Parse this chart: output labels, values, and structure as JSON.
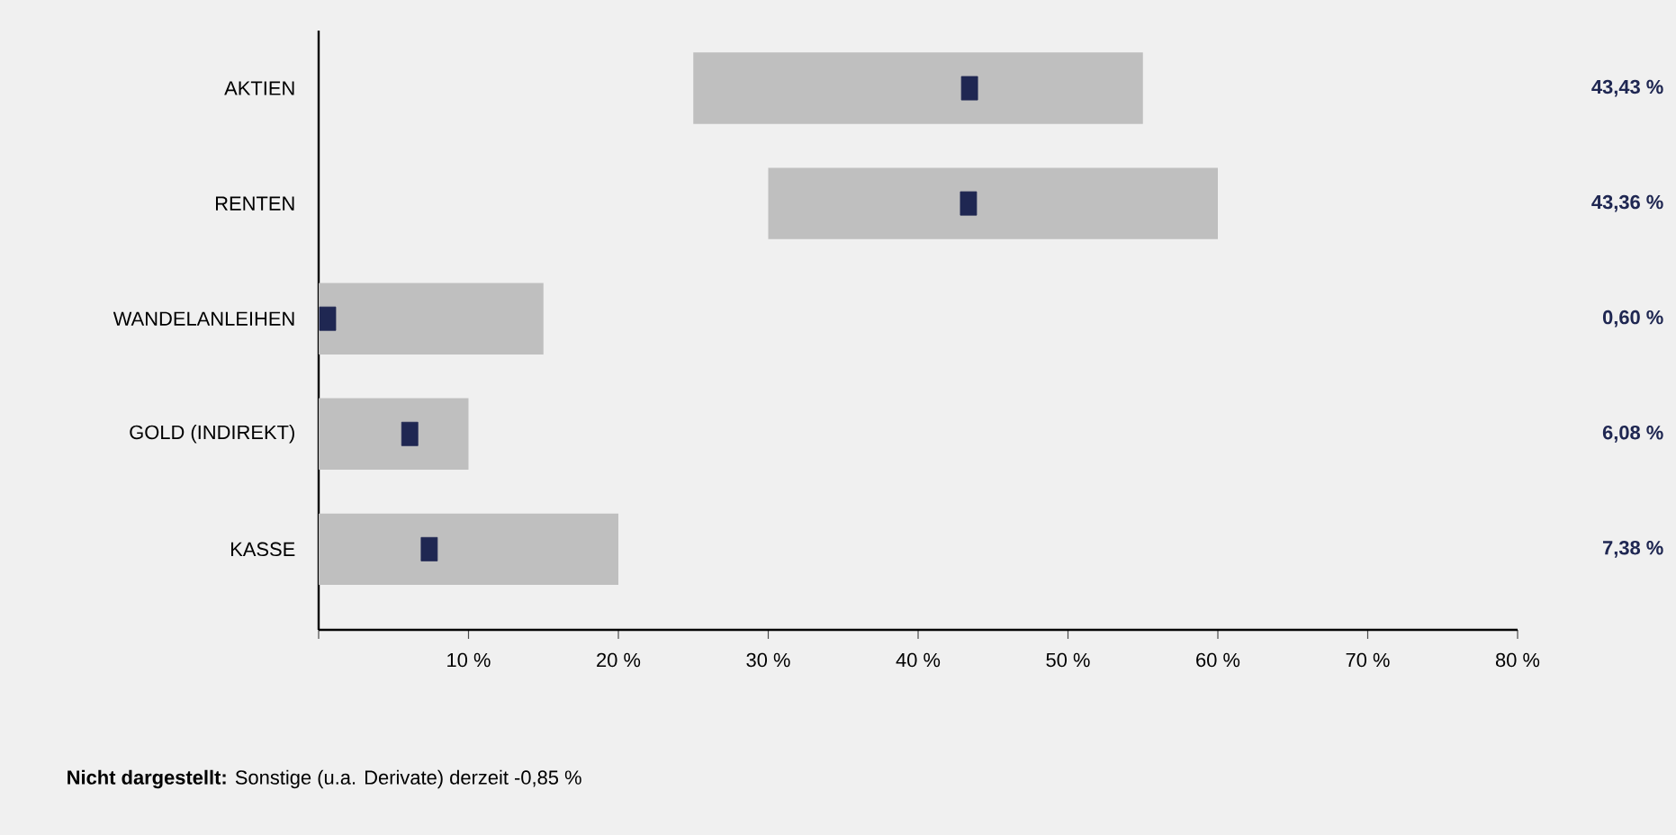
{
  "chart_data": {
    "type": "bar",
    "orientation": "horizontal",
    "categories": [
      "AKTIEN",
      "RENTEN",
      "WANDELANLEIHEN",
      "GOLD (INDIREKT)",
      "KASSE"
    ],
    "series": [
      {
        "color": "#bfbfbf",
        "base": [
          25,
          30,
          0,
          0,
          0
        ],
        "values": [
          30,
          30,
          15,
          10,
          20
        ]
      },
      {
        "type": "scatter",
        "color": "#1f2752",
        "marker": "square",
        "values": [
          43.43,
          43.36,
          0.6,
          6.08,
          7.38
        ],
        "value_labels": [
          "43,43 %",
          "43,36 %",
          "0,60 %",
          "6,08 %",
          "7,38 %"
        ]
      }
    ],
    "xlim": [
      0,
      80
    ],
    "xticks": [
      {
        "value": 0,
        "label": null
      },
      {
        "value": 10,
        "label": "10 %"
      },
      {
        "value": 20,
        "label": "20 %"
      },
      {
        "value": 30,
        "label": "30 %"
      },
      {
        "value": 40,
        "label": "40 %"
      },
      {
        "value": 50,
        "label": "50 %"
      },
      {
        "value": 60,
        "label": "60 %"
      },
      {
        "value": 70,
        "label": "70 %"
      },
      {
        "value": 80,
        "label": "80 %"
      }
    ],
    "annotations": [
      "**Nicht dargestellt:** Sonstige (u.a. Derivate) derzeit -0,85 %"
    ]
  }
}
